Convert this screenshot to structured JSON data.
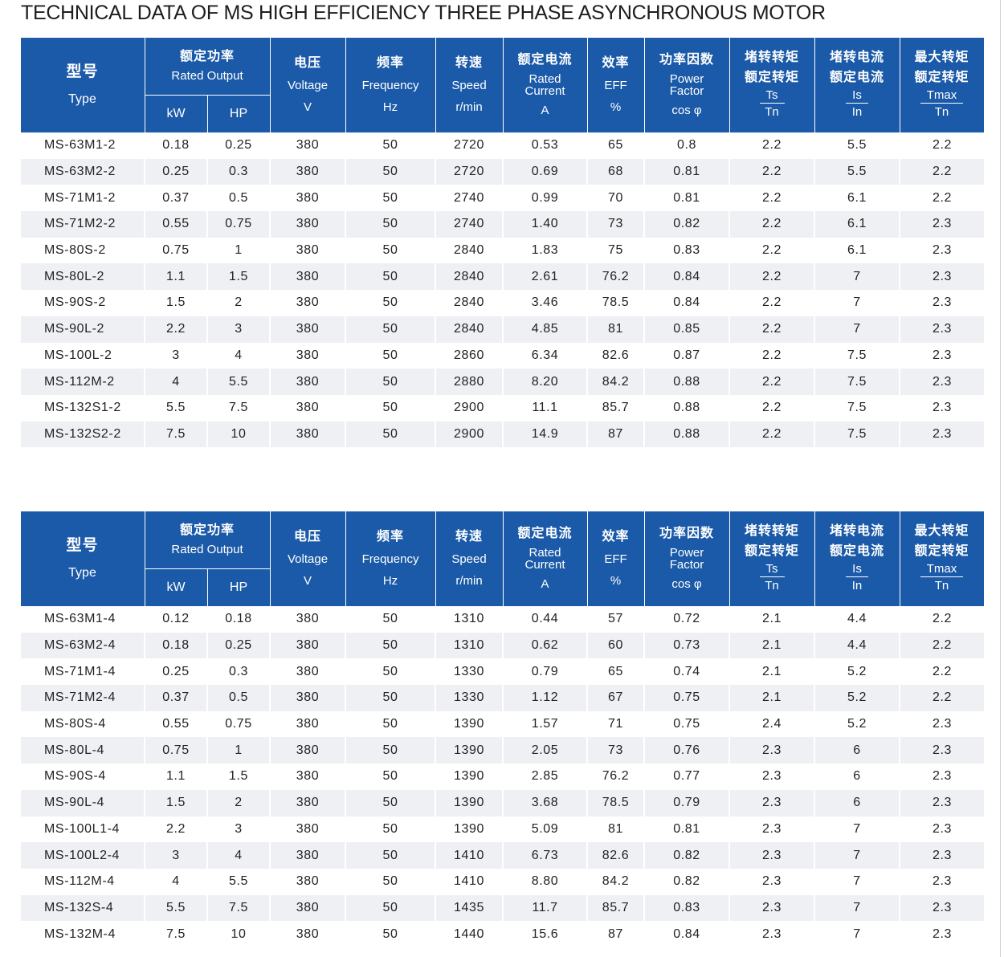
{
  "title": "TECHNICAL DATA OF MS HIGH EFFICIENCY THREE PHASE ASYNCHRONOUS MOTOR",
  "header": {
    "type_cn": "型号",
    "type_en": "Type",
    "rated_cn": "额定功率",
    "rated_en": "Rated Output",
    "kw": "kW",
    "hp": "HP",
    "voltage_cn": "电压",
    "voltage_en": "Voltage",
    "voltage_unit": "V",
    "frequency_cn": "频率",
    "frequency_en": "Frequency",
    "frequency_unit": "Hz",
    "speed_cn": "转速",
    "speed_en": "Speed",
    "speed_unit": "r/min",
    "current_cn": "额定电流",
    "current_en": "Rated Current",
    "current_unit": "A",
    "eff_cn": "效率",
    "eff_en": "EFF",
    "eff_unit": "%",
    "pf_cn": "功率因数",
    "pf_en": "Power Factor",
    "pf_unit": "cos φ",
    "ts_cn1": "堵转转矩",
    "ts_cn2": "额定转矩",
    "ts_num": "Ts",
    "ts_den": "Tn",
    "is_cn1": "堵转电流",
    "is_cn2": "额定电流",
    "is_num": "Is",
    "is_den": "In",
    "tmax_cn1": "最大转矩",
    "tmax_cn2": "额定转矩",
    "tmax_num": "Tmax",
    "tmax_den": "Tn"
  },
  "table_2pole": [
    [
      "MS-63M1-2",
      "0.18",
      "0.25",
      "380",
      "50",
      "2720",
      "0.53",
      "65",
      "0.8",
      "2.2",
      "5.5",
      "2.2"
    ],
    [
      "MS-63M2-2",
      "0.25",
      "0.3",
      "380",
      "50",
      "2720",
      "0.69",
      "68",
      "0.81",
      "2.2",
      "5.5",
      "2.2"
    ],
    [
      "MS-71M1-2",
      "0.37",
      "0.5",
      "380",
      "50",
      "2740",
      "0.99",
      "70",
      "0.81",
      "2.2",
      "6.1",
      "2.2"
    ],
    [
      "MS-71M2-2",
      "0.55",
      "0.75",
      "380",
      "50",
      "2740",
      "1.40",
      "73",
      "0.82",
      "2.2",
      "6.1",
      "2.3"
    ],
    [
      "MS-80S-2",
      "0.75",
      "1",
      "380",
      "50",
      "2840",
      "1.83",
      "75",
      "0.83",
      "2.2",
      "6.1",
      "2.3"
    ],
    [
      "MS-80L-2",
      "1.1",
      "1.5",
      "380",
      "50",
      "2840",
      "2.61",
      "76.2",
      "0.84",
      "2.2",
      "7",
      "2.3"
    ],
    [
      "MS-90S-2",
      "1.5",
      "2",
      "380",
      "50",
      "2840",
      "3.46",
      "78.5",
      "0.84",
      "2.2",
      "7",
      "2.3"
    ],
    [
      "MS-90L-2",
      "2.2",
      "3",
      "380",
      "50",
      "2840",
      "4.85",
      "81",
      "0.85",
      "2.2",
      "7",
      "2.3"
    ],
    [
      "MS-100L-2",
      "3",
      "4",
      "380",
      "50",
      "2860",
      "6.34",
      "82.6",
      "0.87",
      "2.2",
      "7.5",
      "2.3"
    ],
    [
      "MS-112M-2",
      "4",
      "5.5",
      "380",
      "50",
      "2880",
      "8.20",
      "84.2",
      "0.88",
      "2.2",
      "7.5",
      "2.3"
    ],
    [
      "MS-132S1-2",
      "5.5",
      "7.5",
      "380",
      "50",
      "2900",
      "11.1",
      "85.7",
      "0.88",
      "2.2",
      "7.5",
      "2.3"
    ],
    [
      "MS-132S2-2",
      "7.5",
      "10",
      "380",
      "50",
      "2900",
      "14.9",
      "87",
      "0.88",
      "2.2",
      "7.5",
      "2.3"
    ]
  ],
  "table_4pole": [
    [
      "MS-63M1-4",
      "0.12",
      "0.18",
      "380",
      "50",
      "1310",
      "0.44",
      "57",
      "0.72",
      "2.1",
      "4.4",
      "2.2"
    ],
    [
      "MS-63M2-4",
      "0.18",
      "0.25",
      "380",
      "50",
      "1310",
      "0.62",
      "60",
      "0.73",
      "2.1",
      "4.4",
      "2.2"
    ],
    [
      "MS-71M1-4",
      "0.25",
      "0.3",
      "380",
      "50",
      "1330",
      "0.79",
      "65",
      "0.74",
      "2.1",
      "5.2",
      "2.2"
    ],
    [
      "MS-71M2-4",
      "0.37",
      "0.5",
      "380",
      "50",
      "1330",
      "1.12",
      "67",
      "0.75",
      "2.1",
      "5.2",
      "2.2"
    ],
    [
      "MS-80S-4",
      "0.55",
      "0.75",
      "380",
      "50",
      "1390",
      "1.57",
      "71",
      "0.75",
      "2.4",
      "5.2",
      "2.3"
    ],
    [
      "MS-80L-4",
      "0.75",
      "1",
      "380",
      "50",
      "1390",
      "2.05",
      "73",
      "0.76",
      "2.3",
      "6",
      "2.3"
    ],
    [
      "MS-90S-4",
      "1.1",
      "1.5",
      "380",
      "50",
      "1390",
      "2.85",
      "76.2",
      "0.77",
      "2.3",
      "6",
      "2.3"
    ],
    [
      "MS-90L-4",
      "1.5",
      "2",
      "380",
      "50",
      "1390",
      "3.68",
      "78.5",
      "0.79",
      "2.3",
      "6",
      "2.3"
    ],
    [
      "MS-100L1-4",
      "2.2",
      "3",
      "380",
      "50",
      "1390",
      "5.09",
      "81",
      "0.81",
      "2.3",
      "7",
      "2.3"
    ],
    [
      "MS-100L2-4",
      "3",
      "4",
      "380",
      "50",
      "1410",
      "6.73",
      "82.6",
      "0.82",
      "2.3",
      "7",
      "2.3"
    ],
    [
      "MS-112M-4",
      "4",
      "5.5",
      "380",
      "50",
      "1410",
      "8.80",
      "84.2",
      "0.82",
      "2.3",
      "7",
      "2.3"
    ],
    [
      "MS-132S-4",
      "5.5",
      "7.5",
      "380",
      "50",
      "1435",
      "11.7",
      "85.7",
      "0.83",
      "2.3",
      "7",
      "2.3"
    ],
    [
      "MS-132M-4",
      "7.5",
      "10",
      "380",
      "50",
      "1440",
      "15.6",
      "87",
      "0.84",
      "2.3",
      "7",
      "2.3"
    ]
  ]
}
